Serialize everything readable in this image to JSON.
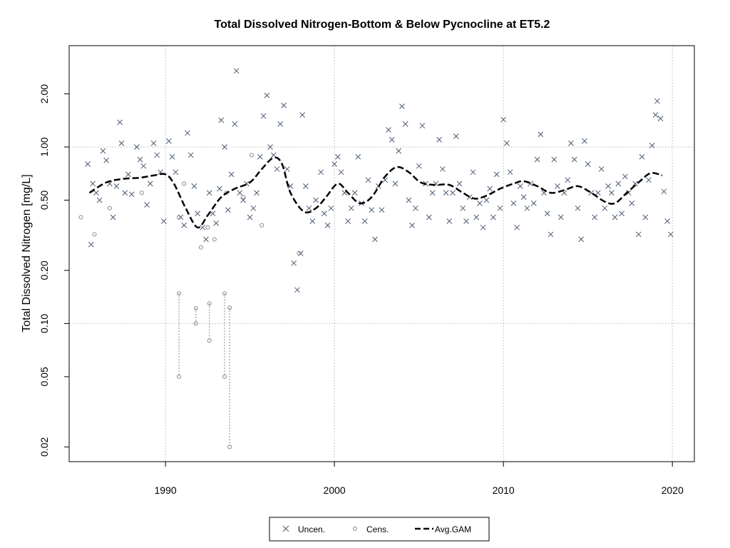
{
  "chart_data": {
    "type": "scatter",
    "title": "Total Dissolved Nitrogen-Bottom & Below Pycnocline at ET5.2",
    "xlabel": "",
    "ylabel": "Total Dissolved Nitrogen [mg/L]",
    "y_scale": "log",
    "xlim": [
      1984.3,
      2021.3
    ],
    "ylim": [
      0.0165,
      3.75
    ],
    "x_ticks": [
      "1990",
      "2000",
      "2010",
      "2020"
    ],
    "y_ticks": [
      "0.02",
      "0.05",
      "0.10",
      "0.20",
      "0.50",
      "1.00",
      "2.00"
    ],
    "grid": true,
    "legend_position": "bottom",
    "colors": {
      "uncensored": "#4a5b73",
      "censored": "#888888",
      "gam": "#000000",
      "grid": "#c8c8c8"
    },
    "legend": [
      {
        "label": "Uncen.",
        "symbol": "x"
      },
      {
        "label": "Cens.",
        "symbol": "circle"
      },
      {
        "label": "Avg.GAM",
        "symbol": "dashed-line"
      }
    ],
    "series": [
      {
        "name": "Uncen.",
        "marker": "x",
        "points": [
          [
            1985.4,
            0.8
          ],
          [
            1985.6,
            0.28
          ],
          [
            1985.7,
            0.62
          ],
          [
            1985.9,
            0.55
          ],
          [
            1986.1,
            0.5
          ],
          [
            1986.3,
            0.95
          ],
          [
            1986.5,
            0.84
          ],
          [
            1986.7,
            0.62
          ],
          [
            1986.9,
            0.4
          ],
          [
            1987.1,
            0.6
          ],
          [
            1987.3,
            1.38
          ],
          [
            1987.4,
            1.05
          ],
          [
            1987.6,
            0.55
          ],
          [
            1987.8,
            0.7
          ],
          [
            1988.0,
            0.54
          ],
          [
            1988.3,
            1.0
          ],
          [
            1988.5,
            0.85
          ],
          [
            1988.7,
            0.78
          ],
          [
            1988.9,
            0.47
          ],
          [
            1989.1,
            0.62
          ],
          [
            1989.3,
            1.05
          ],
          [
            1989.5,
            0.9
          ],
          [
            1989.7,
            0.72
          ],
          [
            1989.9,
            0.38
          ],
          [
            1990.2,
            1.08
          ],
          [
            1990.4,
            0.88
          ],
          [
            1990.6,
            0.72
          ],
          [
            1990.9,
            0.4
          ],
          [
            1991.1,
            0.36
          ],
          [
            1991.3,
            1.2
          ],
          [
            1991.5,
            0.9
          ],
          [
            1991.7,
            0.6
          ],
          [
            1991.9,
            0.42
          ],
          [
            1992.2,
            0.35
          ],
          [
            1992.4,
            0.3
          ],
          [
            1992.6,
            0.55
          ],
          [
            1992.8,
            0.42
          ],
          [
            1993.0,
            0.37
          ],
          [
            1993.2,
            0.58
          ],
          [
            1993.3,
            1.42
          ],
          [
            1993.5,
            1.0
          ],
          [
            1993.7,
            0.44
          ],
          [
            1993.9,
            0.7
          ],
          [
            1994.1,
            1.35
          ],
          [
            1994.2,
            2.7
          ],
          [
            1994.4,
            0.55
          ],
          [
            1994.6,
            0.5
          ],
          [
            1994.8,
            0.62
          ],
          [
            1995.0,
            0.4
          ],
          [
            1995.2,
            0.45
          ],
          [
            1995.4,
            0.55
          ],
          [
            1995.6,
            0.88
          ],
          [
            1995.8,
            1.5
          ],
          [
            1996.0,
            1.96
          ],
          [
            1996.2,
            1.0
          ],
          [
            1996.4,
            0.9
          ],
          [
            1996.6,
            0.75
          ],
          [
            1996.8,
            1.35
          ],
          [
            1997.0,
            1.72
          ],
          [
            1997.2,
            0.75
          ],
          [
            1997.4,
            0.6
          ],
          [
            1997.6,
            0.22
          ],
          [
            1997.8,
            0.155
          ],
          [
            1998.0,
            0.25
          ],
          [
            1998.1,
            1.52
          ],
          [
            1998.3,
            0.6
          ],
          [
            1998.5,
            0.45
          ],
          [
            1998.7,
            0.38
          ],
          [
            1998.9,
            0.5
          ],
          [
            1999.2,
            0.72
          ],
          [
            1999.4,
            0.42
          ],
          [
            1999.6,
            0.36
          ],
          [
            1999.8,
            0.45
          ],
          [
            2000.0,
            0.8
          ],
          [
            2000.2,
            0.88
          ],
          [
            2000.4,
            0.72
          ],
          [
            2000.6,
            0.55
          ],
          [
            2000.8,
            0.38
          ],
          [
            2001.0,
            0.45
          ],
          [
            2001.2,
            0.55
          ],
          [
            2001.4,
            0.88
          ],
          [
            2001.6,
            0.48
          ],
          [
            2001.8,
            0.38
          ],
          [
            2002.0,
            0.65
          ],
          [
            2002.2,
            0.44
          ],
          [
            2002.4,
            0.3
          ],
          [
            2002.6,
            0.6
          ],
          [
            2002.8,
            0.44
          ],
          [
            2003.0,
            0.65
          ],
          [
            2003.2,
            1.25
          ],
          [
            2003.4,
            1.1
          ],
          [
            2003.6,
            0.62
          ],
          [
            2003.8,
            0.95
          ],
          [
            2004.0,
            1.7
          ],
          [
            2004.2,
            1.35
          ],
          [
            2004.4,
            0.5
          ],
          [
            2004.6,
            0.36
          ],
          [
            2004.8,
            0.45
          ],
          [
            2005.0,
            0.78
          ],
          [
            2005.2,
            1.32
          ],
          [
            2005.4,
            0.62
          ],
          [
            2005.6,
            0.4
          ],
          [
            2005.8,
            0.55
          ],
          [
            2006.0,
            0.62
          ],
          [
            2006.2,
            1.1
          ],
          [
            2006.4,
            0.75
          ],
          [
            2006.6,
            0.55
          ],
          [
            2006.8,
            0.38
          ],
          [
            2007.0,
            0.55
          ],
          [
            2007.2,
            1.15
          ],
          [
            2007.4,
            0.62
          ],
          [
            2007.6,
            0.45
          ],
          [
            2007.8,
            0.38
          ],
          [
            2008.0,
            0.52
          ],
          [
            2008.2,
            0.72
          ],
          [
            2008.4,
            0.4
          ],
          [
            2008.6,
            0.48
          ],
          [
            2008.8,
            0.35
          ],
          [
            2009.0,
            0.5
          ],
          [
            2009.2,
            0.58
          ],
          [
            2009.4,
            0.4
          ],
          [
            2009.6,
            0.7
          ],
          [
            2009.8,
            0.45
          ],
          [
            2010.0,
            1.43
          ],
          [
            2010.2,
            1.05
          ],
          [
            2010.4,
            0.72
          ],
          [
            2010.6,
            0.48
          ],
          [
            2010.8,
            0.35
          ],
          [
            2011.0,
            0.6
          ],
          [
            2011.2,
            0.52
          ],
          [
            2011.4,
            0.45
          ],
          [
            2011.6,
            0.62
          ],
          [
            2011.8,
            0.48
          ],
          [
            2012.0,
            0.85
          ],
          [
            2012.2,
            1.18
          ],
          [
            2012.4,
            0.55
          ],
          [
            2012.6,
            0.42
          ],
          [
            2012.8,
            0.32
          ],
          [
            2013.0,
            0.85
          ],
          [
            2013.2,
            0.6
          ],
          [
            2013.4,
            0.4
          ],
          [
            2013.6,
            0.55
          ],
          [
            2013.8,
            0.65
          ],
          [
            2014.0,
            1.05
          ],
          [
            2014.2,
            0.85
          ],
          [
            2014.4,
            0.45
          ],
          [
            2014.6,
            0.3
          ],
          [
            2014.8,
            1.08
          ],
          [
            2015.0,
            0.8
          ],
          [
            2015.2,
            0.55
          ],
          [
            2015.4,
            0.4
          ],
          [
            2015.6,
            0.55
          ],
          [
            2015.8,
            0.75
          ],
          [
            2016.0,
            0.45
          ],
          [
            2016.2,
            0.6
          ],
          [
            2016.4,
            0.55
          ],
          [
            2016.6,
            0.4
          ],
          [
            2016.8,
            0.62
          ],
          [
            2017.0,
            0.42
          ],
          [
            2017.2,
            0.68
          ],
          [
            2017.4,
            0.55
          ],
          [
            2017.6,
            0.48
          ],
          [
            2017.8,
            0.62
          ],
          [
            2018.0,
            0.32
          ],
          [
            2018.2,
            0.88
          ],
          [
            2018.4,
            0.4
          ],
          [
            2018.6,
            0.65
          ],
          [
            2018.8,
            1.02
          ],
          [
            2019.0,
            1.52
          ],
          [
            2019.1,
            1.82
          ],
          [
            2019.3,
            1.45
          ],
          [
            2019.5,
            0.56
          ],
          [
            2019.7,
            0.38
          ],
          [
            2019.9,
            0.32
          ]
        ]
      },
      {
        "name": "Cens.",
        "marker": "circle",
        "points": [
          [
            1985.0,
            0.4
          ],
          [
            1985.8,
            0.32
          ],
          [
            1986.7,
            0.45
          ],
          [
            1988.6,
            0.55
          ],
          [
            1990.8,
            0.4
          ],
          [
            1991.1,
            0.62
          ],
          [
            1992.1,
            0.27
          ],
          [
            1992.5,
            0.35
          ],
          [
            1992.9,
            0.3
          ],
          [
            1993.6,
            0.55
          ],
          [
            1994.6,
            0.52
          ],
          [
            1995.1,
            0.9
          ],
          [
            1995.7,
            0.36
          ],
          [
            1997.9,
            0.25
          ]
        ]
      }
    ],
    "censored_intervals": [
      {
        "x": 1990.8,
        "low": 0.05,
        "high": 0.148
      },
      {
        "x": 1991.8,
        "low": 0.1,
        "high": 0.122
      },
      {
        "x": 1992.6,
        "low": 0.08,
        "high": 0.13
      },
      {
        "x": 1993.5,
        "low": 0.05,
        "high": 0.148
      },
      {
        "x": 1993.8,
        "low": 0.02,
        "high": 0.123
      }
    ],
    "gam": {
      "name": "Avg.GAM",
      "x": [
        1985.5,
        1986.5,
        1987.5,
        1988.5,
        1989.3,
        1990.0,
        1990.5,
        1991.2,
        1991.9,
        1992.5,
        1993.3,
        1994.1,
        1995.0,
        1995.7,
        1996.4,
        1996.9,
        1997.4,
        1998.2,
        1998.9,
        1999.5,
        2000.2,
        2000.8,
        2001.5,
        2002.2,
        2003.0,
        2003.7,
        2004.4,
        2005.1,
        2005.9,
        2006.8,
        2007.6,
        2008.3,
        2009.0,
        2009.8,
        2010.6,
        2011.2,
        2012.0,
        2012.8,
        2013.6,
        2014.4,
        2015.2,
        2016.0,
        2016.6,
        2017.3,
        2018.0,
        2018.7,
        2019.4
      ],
      "y": [
        0.55,
        0.63,
        0.66,
        0.67,
        0.69,
        0.7,
        0.62,
        0.45,
        0.35,
        0.41,
        0.52,
        0.58,
        0.63,
        0.75,
        0.87,
        0.8,
        0.55,
        0.43,
        0.45,
        0.52,
        0.62,
        0.55,
        0.48,
        0.52,
        0.68,
        0.77,
        0.72,
        0.63,
        0.61,
        0.61,
        0.55,
        0.51,
        0.53,
        0.58,
        0.62,
        0.64,
        0.6,
        0.55,
        0.57,
        0.6,
        0.55,
        0.49,
        0.48,
        0.55,
        0.63,
        0.71,
        0.69
      ]
    }
  }
}
